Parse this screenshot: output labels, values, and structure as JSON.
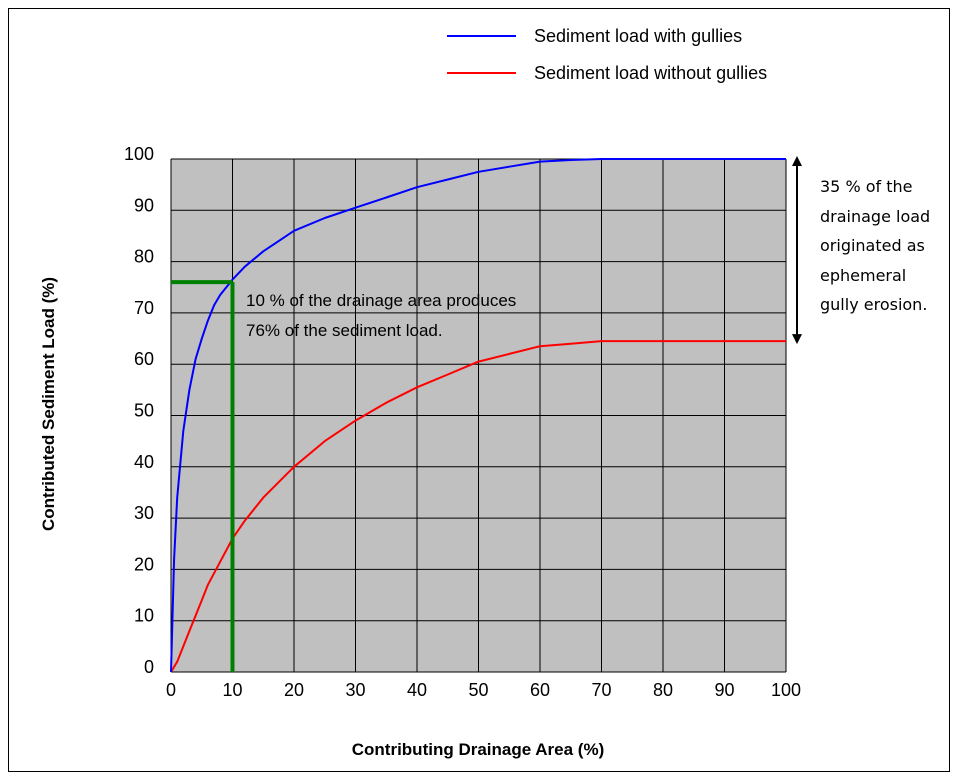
{
  "chart_data": {
    "type": "line",
    "xlabel": "Contributing Drainage Area (%)",
    "ylabel": "Contributed Sediment Load (%)",
    "xlim": [
      0,
      100
    ],
    "ylim": [
      0,
      100
    ],
    "x_ticks": [
      "0",
      "10",
      "20",
      "30",
      "40",
      "50",
      "60",
      "70",
      "80",
      "90",
      "100"
    ],
    "y_ticks": [
      "0",
      "10",
      "20",
      "30",
      "40",
      "50",
      "60",
      "70",
      "80",
      "90",
      "100"
    ],
    "grid": true,
    "plot_background": "#c0c0c0",
    "legend_position": "top-right",
    "series": [
      {
        "name": "Sediment load with gullies",
        "color": "#0000ff",
        "x": [
          0,
          0.5,
          1,
          2,
          3,
          4,
          5,
          6,
          7,
          8,
          10,
          12,
          15,
          20,
          25,
          30,
          35,
          40,
          45,
          50,
          55,
          60,
          65,
          70,
          80,
          90,
          100
        ],
        "y": [
          0,
          22,
          34,
          47,
          55,
          61,
          65,
          68.5,
          71.5,
          73.5,
          76.5,
          79,
          82,
          86,
          88.5,
          90.5,
          92.5,
          94.5,
          96,
          97.5,
          98.5,
          99.5,
          99.8,
          100,
          100,
          100,
          100
        ]
      },
      {
        "name": "Sediment load without gullies",
        "color": "#ff0000",
        "x": [
          0,
          1,
          2,
          3,
          4,
          5,
          6,
          8,
          10,
          12,
          15,
          20,
          25,
          30,
          35,
          40,
          45,
          50,
          55,
          60,
          65,
          70,
          80,
          90,
          100
        ],
        "y": [
          0,
          2,
          5,
          8,
          11,
          14,
          17,
          21.5,
          26,
          29.5,
          34,
          40,
          45,
          49,
          52.5,
          55.5,
          58,
          60.5,
          62,
          63.5,
          64,
          64.5,
          64.5,
          64.5,
          64.5
        ]
      }
    ],
    "marker_line": {
      "color": "#008000",
      "x": 10,
      "y": 76
    },
    "annotation": {
      "line1": "10 % of the drainage area produces",
      "line2": "76% of the sediment load."
    },
    "side_note": {
      "lines": [
        "35 % of the",
        "drainage load",
        "originated as",
        "ephemeral",
        "gully erosion."
      ],
      "arrow_from": 64.5,
      "arrow_to": 100
    }
  }
}
